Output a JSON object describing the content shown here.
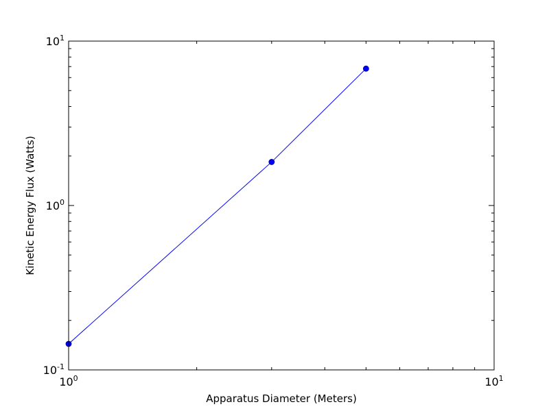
{
  "chart_data": {
    "type": "line",
    "title": "",
    "xlabel": "Apparatus Diameter (Meters)",
    "ylabel": "Kinetic Energy Flux (Watts)",
    "x_scale": "log",
    "y_scale": "log",
    "xlim": [
      1,
      10
    ],
    "ylim": [
      0.1,
      10
    ],
    "grid": false,
    "x_ticks": [
      {
        "value": 1,
        "base": "10",
        "exp": "0"
      },
      {
        "value": 10,
        "base": "10",
        "exp": "1"
      }
    ],
    "y_ticks": [
      {
        "value": 0.1,
        "base": "10",
        "exp": "-1"
      },
      {
        "value": 1,
        "base": "10",
        "exp": "0"
      },
      {
        "value": 10,
        "base": "10",
        "exp": "1"
      }
    ],
    "series": [
      {
        "color": "#0000ff",
        "marker": "circle",
        "x": [
          1,
          3,
          5
        ],
        "y": [
          0.144,
          1.84,
          6.8
        ]
      }
    ]
  }
}
